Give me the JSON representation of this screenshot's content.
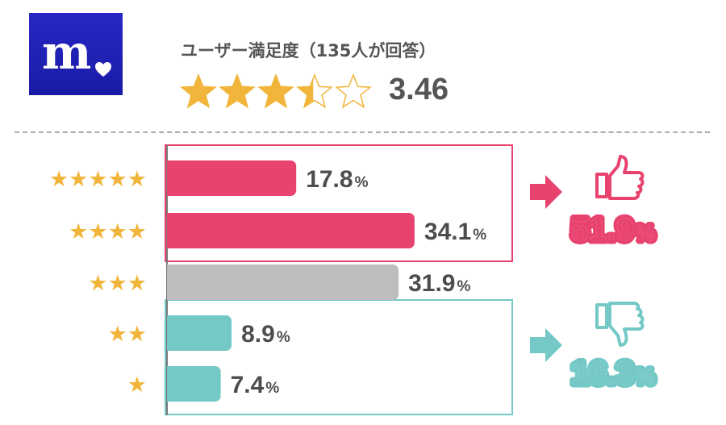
{
  "logo": {
    "text": "m",
    "color": "#2222b8",
    "icon": "heart-icon"
  },
  "rating": {
    "title": "ユーザー満足度（135人が回答）",
    "score": "3.46",
    "stars_value": 3.46,
    "stars_max": 5,
    "star_color": "#f2b53b"
  },
  "chart_data": {
    "type": "bar",
    "orientation": "horizontal",
    "categories": [
      "★★★★★",
      "★★★★",
      "★★★",
      "★★",
      "★"
    ],
    "values": [
      17.8,
      34.1,
      31.9,
      8.9,
      7.4
    ],
    "value_labels": [
      "17.8",
      "34.1",
      "31.9",
      "8.9",
      "7.4"
    ],
    "unit": "%",
    "bar_colors": [
      "#e8436f",
      "#e8436f",
      "#bdbdbd",
      "#74c9c7",
      "#74c9c7"
    ],
    "groups": [
      {
        "name": "positive",
        "rows": [
          0,
          1
        ],
        "total": "51.9",
        "unit": "%",
        "color": "#e8436f",
        "icon": "thumbs-up-icon"
      },
      {
        "name": "negative",
        "rows": [
          3,
          4
        ],
        "total": "16.3",
        "unit": "%",
        "color": "#74c9c7",
        "icon": "thumbs-down-icon"
      }
    ],
    "title": "",
    "xlabel": "",
    "ylabel": "",
    "grid": false
  }
}
